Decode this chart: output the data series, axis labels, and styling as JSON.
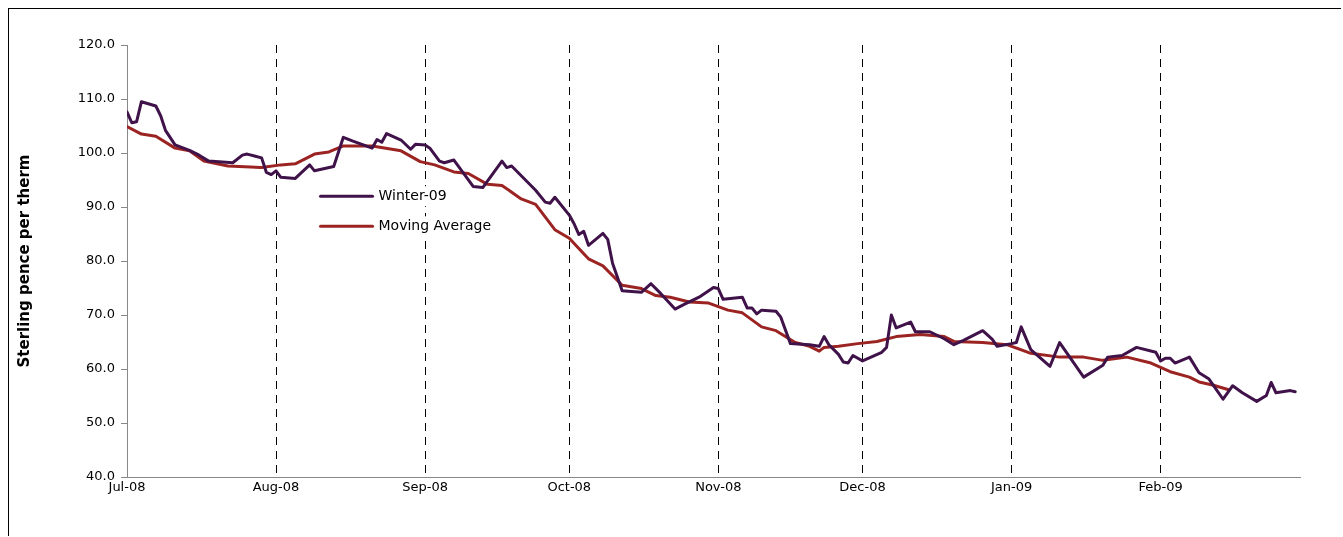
{
  "chart_data": {
    "type": "line",
    "ylabel": "Sterling pence per therm",
    "xlim": [
      "2008-07-01",
      "2009-03-02"
    ],
    "xticks": [
      {
        "value": "2008-07-01",
        "label": "Jul-08"
      },
      {
        "value": "2008-08-01",
        "label": "Aug-08"
      },
      {
        "value": "2008-09-01",
        "label": "Sep-08"
      },
      {
        "value": "2008-10-01",
        "label": "Oct-08"
      },
      {
        "value": "2008-11-01",
        "label": "Nov-08"
      },
      {
        "value": "2008-12-01",
        "label": "Dec-08"
      },
      {
        "value": "2009-01-01",
        "label": "Jan-09"
      },
      {
        "value": "2009-02-01",
        "label": "Feb-09"
      }
    ],
    "ylim": [
      40,
      120
    ],
    "yticks": [
      {
        "value": 40,
        "label": "40.0"
      },
      {
        "value": 50,
        "label": "50.0"
      },
      {
        "value": 60,
        "label": "60.0"
      },
      {
        "value": 70,
        "label": "70.0"
      },
      {
        "value": 80,
        "label": "80.0"
      },
      {
        "value": 90,
        "label": "90.0"
      },
      {
        "value": 100,
        "label": "100.0"
      },
      {
        "value": 110,
        "label": "110.0"
      },
      {
        "value": 120,
        "label": "120.0"
      }
    ],
    "grid": "x",
    "legend": "top left",
    "marker": "none",
    "line_style": "solid",
    "series": [
      {
        "name": "Winter-09",
        "color": "#40124a",
        "x": [
          "2008-07-01",
          "2008-07-02",
          "2008-07-03",
          "2008-07-04",
          "2008-07-07",
          "2008-07-08",
          "2008-07-09",
          "2008-07-11",
          "2008-07-14",
          "2008-07-16",
          "2008-07-18",
          "2008-07-23",
          "2008-07-25",
          "2008-07-26",
          "2008-07-29",
          "2008-07-30",
          "2008-07-31",
          "2008-08-01",
          "2008-08-02",
          "2008-08-05",
          "2008-08-08",
          "2008-08-09",
          "2008-08-13",
          "2008-08-15",
          "2008-08-17",
          "2008-08-21",
          "2008-08-22",
          "2008-08-23",
          "2008-08-24",
          "2008-08-27",
          "2008-08-29",
          "2008-08-30",
          "2008-09-01",
          "2008-09-02",
          "2008-09-04",
          "2008-09-05",
          "2008-09-07",
          "2008-09-11",
          "2008-09-13",
          "2008-09-17",
          "2008-09-18",
          "2008-09-19",
          "2008-09-24",
          "2008-09-26",
          "2008-09-27",
          "2008-09-28",
          "2008-10-01",
          "2008-10-02",
          "2008-10-03",
          "2008-10-04",
          "2008-10-05",
          "2008-10-08",
          "2008-10-09",
          "2008-10-10",
          "2008-10-12",
          "2008-10-16",
          "2008-10-18",
          "2008-10-20",
          "2008-10-23",
          "2008-10-25",
          "2008-10-28",
          "2008-10-31",
          "2008-11-01",
          "2008-11-02",
          "2008-11-06",
          "2008-11-07",
          "2008-11-08",
          "2008-11-09",
          "2008-11-10",
          "2008-11-13",
          "2008-11-14",
          "2008-11-16",
          "2008-11-20",
          "2008-11-22",
          "2008-11-23",
          "2008-11-24",
          "2008-11-26",
          "2008-11-27",
          "2008-11-28",
          "2008-11-29",
          "2008-12-01",
          "2008-12-05",
          "2008-12-06",
          "2008-12-07",
          "2008-12-08",
          "2008-12-11",
          "2008-12-12",
          "2008-12-15",
          "2008-12-18",
          "2008-12-20",
          "2008-12-22",
          "2008-12-26",
          "2008-12-28",
          "2008-12-29",
          "2009-01-01",
          "2009-01-02",
          "2009-01-03",
          "2009-01-05",
          "2009-01-09",
          "2009-01-11",
          "2009-01-16",
          "2009-01-20",
          "2009-01-21",
          "2009-01-24",
          "2009-01-27",
          "2009-01-31",
          "2009-02-01",
          "2009-02-02",
          "2009-02-03",
          "2009-02-04",
          "2009-02-07",
          "2009-02-09",
          "2009-02-11",
          "2009-02-14",
          "2009-02-16",
          "2009-02-18",
          "2009-02-21",
          "2009-02-23",
          "2009-02-24",
          "2009-02-25",
          "2009-02-28",
          "2009-03-01"
        ],
        "values": [
          107.6,
          105.6,
          105.8,
          109.5,
          108.7,
          106.9,
          104.2,
          101.5,
          100.5,
          99.6,
          98.5,
          98.2,
          99.6,
          99.8,
          99.1,
          96.4,
          96.0,
          96.7,
          95.5,
          95.3,
          97.8,
          96.7,
          97.5,
          102.9,
          102.2,
          100.9,
          102.5,
          102.0,
          103.6,
          102.4,
          100.7,
          101.6,
          101.5,
          100.9,
          98.5,
          98.2,
          98.7,
          93.8,
          93.6,
          98.5,
          97.3,
          97.6,
          93.1,
          90.9,
          90.7,
          91.8,
          88.5,
          86.9,
          84.9,
          85.5,
          82.9,
          85.1,
          84.0,
          79.6,
          74.5,
          74.2,
          75.8,
          74.0,
          71.1,
          72.0,
          73.3,
          75.1,
          74.9,
          72.9,
          73.3,
          71.3,
          71.3,
          70.2,
          70.9,
          70.7,
          69.6,
          64.7,
          64.5,
          64.2,
          66.0,
          64.5,
          62.7,
          61.3,
          61.1,
          62.5,
          61.5,
          63.1,
          64.0,
          70.0,
          67.6,
          68.7,
          66.9,
          66.9,
          65.6,
          64.5,
          65.3,
          67.1,
          65.5,
          64.2,
          64.7,
          64.9,
          67.8,
          63.6,
          60.5,
          64.9,
          58.5,
          60.7,
          62.2,
          62.5,
          64.0,
          63.1,
          61.5,
          62.0,
          62.0,
          61.1,
          62.2,
          59.3,
          58.2,
          54.4,
          56.9,
          55.6,
          54.0,
          55.1,
          57.5,
          55.6,
          56.0,
          55.8
        ]
      },
      {
        "name": "Moving Average",
        "color": "#9b2423",
        "x": [
          "2008-07-01",
          "2008-07-04",
          "2008-07-07",
          "2008-07-11",
          "2008-07-14",
          "2008-07-17",
          "2008-07-22",
          "2008-07-29",
          "2008-08-02",
          "2008-08-05",
          "2008-08-09",
          "2008-08-12",
          "2008-08-15",
          "2008-08-21",
          "2008-08-27",
          "2008-08-31",
          "2008-09-03",
          "2008-09-07",
          "2008-09-10",
          "2008-09-14",
          "2008-09-17",
          "2008-09-21",
          "2008-09-24",
          "2008-09-28",
          "2008-10-01",
          "2008-10-05",
          "2008-10-08",
          "2008-10-12",
          "2008-10-16",
          "2008-10-19",
          "2008-10-22",
          "2008-10-26",
          "2008-10-30",
          "2008-11-03",
          "2008-11-06",
          "2008-11-10",
          "2008-11-13",
          "2008-11-17",
          "2008-11-20",
          "2008-11-22",
          "2008-11-23",
          "2008-11-26",
          "2008-11-30",
          "2008-12-04",
          "2008-12-08",
          "2008-12-13",
          "2008-12-18",
          "2008-12-20",
          "2008-12-26",
          "2008-12-31",
          "2009-01-01",
          "2009-01-05",
          "2009-01-11",
          "2009-01-16",
          "2009-01-20",
          "2009-01-25",
          "2009-01-30",
          "2009-02-03",
          "2009-02-07",
          "2009-02-09",
          "2009-02-12",
          "2009-02-15"
        ],
        "values": [
          104.9,
          103.5,
          103.1,
          100.9,
          100.4,
          98.5,
          97.6,
          97.3,
          97.8,
          98.0,
          99.8,
          100.2,
          101.3,
          101.3,
          100.4,
          98.4,
          97.8,
          96.5,
          96.2,
          94.2,
          94.0,
          91.5,
          90.5,
          85.8,
          84.2,
          80.4,
          79.1,
          75.5,
          74.9,
          73.6,
          73.3,
          72.4,
          72.2,
          70.9,
          70.4,
          67.8,
          67.1,
          64.9,
          64.2,
          63.3,
          64.0,
          64.2,
          64.7,
          65.1,
          66.0,
          66.4,
          66.0,
          65.1,
          64.9,
          64.5,
          64.2,
          62.9,
          62.2,
          62.2,
          61.6,
          62.2,
          61.1,
          59.5,
          58.5,
          57.6,
          57.0,
          56.2
        ]
      }
    ]
  }
}
